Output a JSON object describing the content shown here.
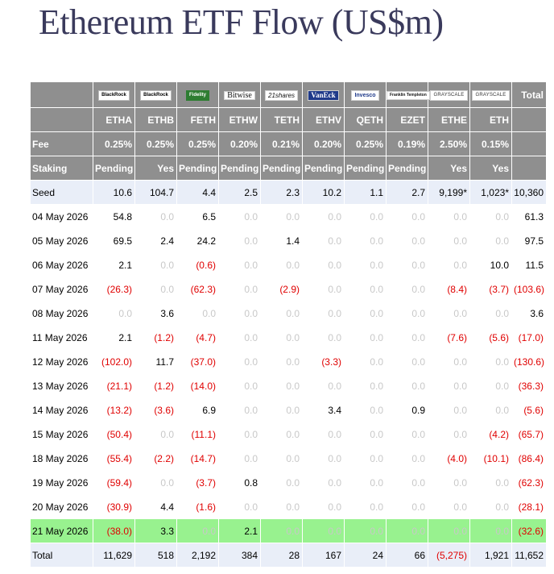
{
  "title": "Ethereum ETF Flow (US$m)",
  "logos": [
    "BlackRock",
    "BlackRock",
    "Fidelity",
    "Bitwise",
    "21shares",
    "VanEck",
    "Invesco",
    "Franklin Templeton",
    "GRAYSCALE",
    "GRAYSCALE"
  ],
  "total_header": "Total",
  "tickers": [
    "ETHA",
    "ETHB",
    "FETH",
    "ETHW",
    "TETH",
    "ETHV",
    "QETH",
    "EZET",
    "ETHE",
    "ETH"
  ],
  "fee": {
    "label": "Fee",
    "values": [
      "0.25%",
      "0.25%",
      "0.25%",
      "0.20%",
      "0.21%",
      "0.20%",
      "0.25%",
      "0.19%",
      "2.50%",
      "0.15%"
    ]
  },
  "staking": {
    "label": "Staking",
    "values": [
      "Pending",
      "Yes",
      "Pending",
      "Pending",
      "Pending",
      "Pending",
      "Pending",
      "Pending",
      "Yes",
      "Yes"
    ]
  },
  "rows": [
    {
      "label": "Seed",
      "values": [
        "10.6",
        "104.7",
        "4.4",
        "2.5",
        "2.3",
        "10.2",
        "1.1",
        "2.7",
        "9,199*",
        "1,023*",
        "10,360"
      ]
    },
    {
      "label": "04 May 2026",
      "values": [
        "54.8",
        "0.0",
        "6.5",
        "0.0",
        "0.0",
        "0.0",
        "0.0",
        "0.0",
        "0.0",
        "0.0",
        "61.3"
      ]
    },
    {
      "label": "05 May 2026",
      "values": [
        "69.5",
        "2.4",
        "24.2",
        "0.0",
        "1.4",
        "0.0",
        "0.0",
        "0.0",
        "0.0",
        "0.0",
        "97.5"
      ]
    },
    {
      "label": "06 May 2026",
      "values": [
        "2.1",
        "0.0",
        "(0.6)",
        "0.0",
        "0.0",
        "0.0",
        "0.0",
        "0.0",
        "0.0",
        "10.0",
        "11.5"
      ]
    },
    {
      "label": "07 May 2026",
      "values": [
        "(26.3)",
        "0.0",
        "(62.3)",
        "0.0",
        "(2.9)",
        "0.0",
        "0.0",
        "0.0",
        "(8.4)",
        "(3.7)",
        "(103.6)"
      ]
    },
    {
      "label": "08 May 2026",
      "values": [
        "0.0",
        "3.6",
        "0.0",
        "0.0",
        "0.0",
        "0.0",
        "0.0",
        "0.0",
        "0.0",
        "0.0",
        "3.6"
      ]
    },
    {
      "label": "11 May 2026",
      "values": [
        "2.1",
        "(1.2)",
        "(4.7)",
        "0.0",
        "0.0",
        "0.0",
        "0.0",
        "0.0",
        "(7.6)",
        "(5.6)",
        "(17.0)"
      ]
    },
    {
      "label": "12 May 2026",
      "values": [
        "(102.0)",
        "11.7",
        "(37.0)",
        "0.0",
        "0.0",
        "(3.3)",
        "0.0",
        "0.0",
        "0.0",
        "0.0",
        "(130.6)"
      ]
    },
    {
      "label": "13 May 2026",
      "values": [
        "(21.1)",
        "(1.2)",
        "(14.0)",
        "0.0",
        "0.0",
        "0.0",
        "0.0",
        "0.0",
        "0.0",
        "0.0",
        "(36.3)"
      ]
    },
    {
      "label": "14 May 2026",
      "values": [
        "(13.2)",
        "(3.6)",
        "6.9",
        "0.0",
        "0.0",
        "3.4",
        "0.0",
        "0.9",
        "0.0",
        "0.0",
        "(5.6)"
      ]
    },
    {
      "label": "15 May 2026",
      "values": [
        "(50.4)",
        "0.0",
        "(11.1)",
        "0.0",
        "0.0",
        "0.0",
        "0.0",
        "0.0",
        "0.0",
        "(4.2)",
        "(65.7)"
      ]
    },
    {
      "label": "18 May 2026",
      "values": [
        "(55.4)",
        "(2.2)",
        "(14.7)",
        "0.0",
        "0.0",
        "0.0",
        "0.0",
        "0.0",
        "(4.0)",
        "(10.1)",
        "(86.4)"
      ]
    },
    {
      "label": "19 May 2026",
      "values": [
        "(59.4)",
        "0.0",
        "(3.7)",
        "0.8",
        "0.0",
        "0.0",
        "0.0",
        "0.0",
        "0.0",
        "0.0",
        "(62.3)"
      ]
    },
    {
      "label": "20 May 2026",
      "values": [
        "(30.9)",
        "4.4",
        "(1.6)",
        "0.0",
        "0.0",
        "0.0",
        "0.0",
        "0.0",
        "0.0",
        "0.0",
        "(28.1)"
      ]
    },
    {
      "label": "21 May 2026",
      "values": [
        "(38.0)",
        "3.3",
        "0.0",
        "2.1",
        "0.0",
        "0.0",
        "0.0",
        "0.0",
        "0.0",
        "0.0",
        "(32.6)"
      ]
    }
  ],
  "total": {
    "label": "Total",
    "values": [
      "11,629",
      "518",
      "2,192",
      "384",
      "28",
      "167",
      "24",
      "66",
      "(5,275)",
      "1,921",
      "11,652"
    ]
  },
  "colors": {
    "header_gray": "#8f8f8f",
    "seed_bg": "#e9eef8",
    "highlight_bg": "#98f28f",
    "negative": "#e00000",
    "zero": "#c8c8c8"
  }
}
